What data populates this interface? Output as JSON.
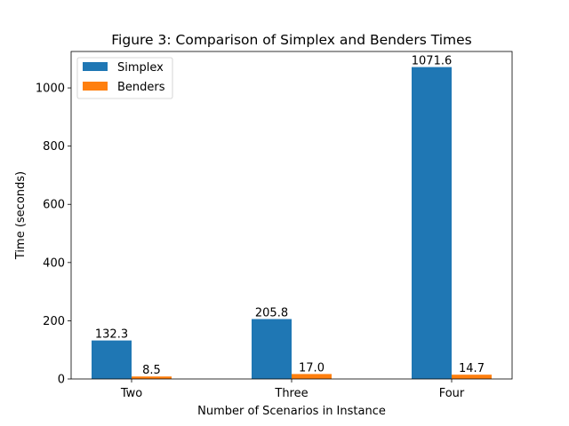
{
  "chart_data": {
    "type": "bar",
    "title": "Figure 3: Comparison of Simplex and Benders Times",
    "xlabel": "Number of Scenarios in Instance",
    "ylabel": "Time (seconds)",
    "categories": [
      "Two",
      "Three",
      "Four"
    ],
    "series": [
      {
        "name": "Simplex",
        "values": [
          132.3,
          205.8,
          1071.6
        ],
        "labels": [
          "132.3",
          "205.8",
          "1071.6"
        ],
        "color": "#1f77b4"
      },
      {
        "name": "Benders",
        "values": [
          8.5,
          17.0,
          14.7
        ],
        "labels": [
          "8.5",
          "17.0",
          "14.7"
        ],
        "color": "#ff7f0e"
      }
    ],
    "ylim": [
      0,
      1125.2
    ],
    "yticks": [
      0,
      200,
      400,
      600,
      800,
      1000
    ],
    "grid": false,
    "legend_position": "top-left"
  }
}
